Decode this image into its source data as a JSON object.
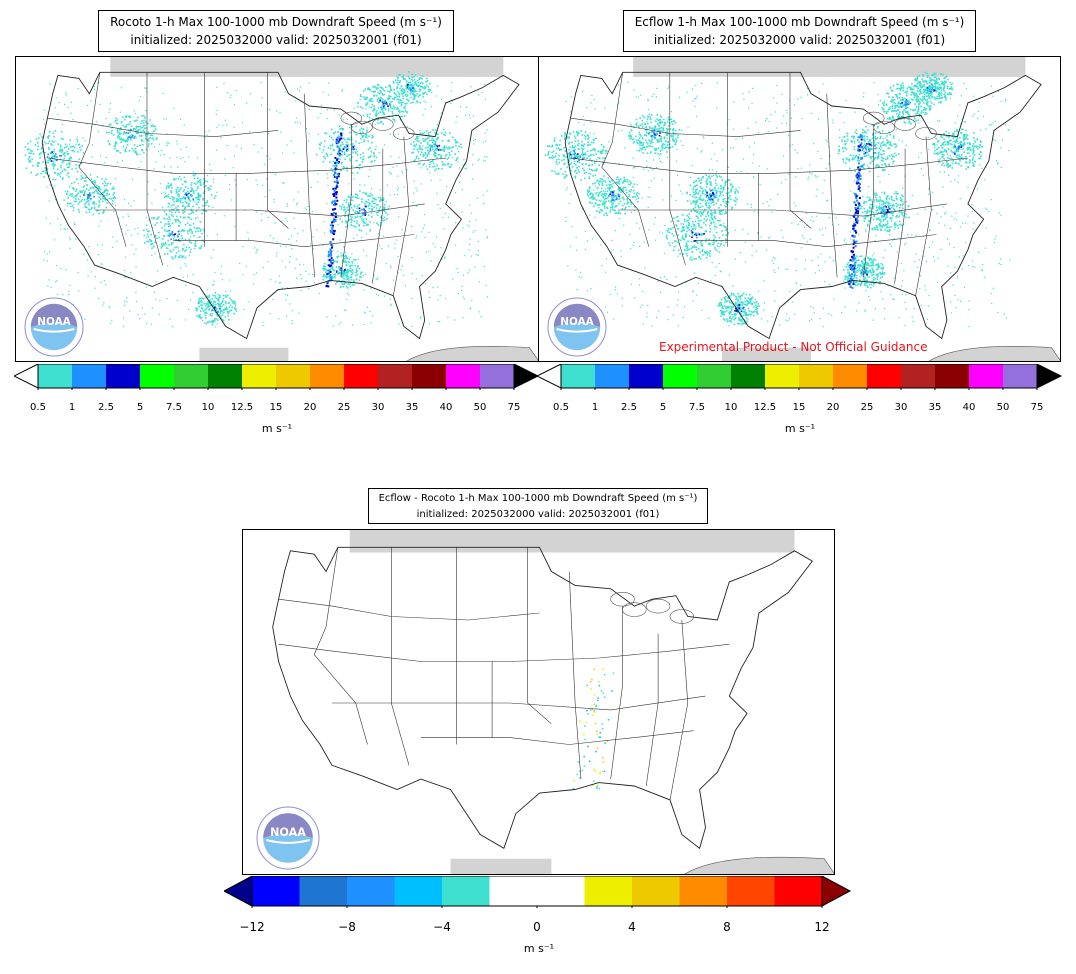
{
  "panels": [
    {
      "title_line1": "Rocoto 1-h Max 100-1000 mb Downdraft Speed (m s⁻¹)",
      "title_line2": "initialized: 2025032000 valid: 2025032001 (f01)"
    },
    {
      "title_line1": "Ecflow 1-h Max 100-1000 mb Downdraft Speed (m s⁻¹)",
      "title_line2": "initialized: 2025032000 valid: 2025032001 (f01)",
      "disclaimer": "Experimental Product - Not Official Guidance"
    },
    {
      "title_line1": "Ecflow - Rocoto 1-h Max 100-1000 mb Downdraft Speed (m s⁻¹)",
      "title_line2": "initialized: 2025032000 valid: 2025032001 (f01)"
    }
  ],
  "colorbar_top": {
    "ticks": [
      "0.5",
      "1",
      "2.5",
      "5",
      "7.5",
      "10",
      "12.5",
      "15",
      "20",
      "25",
      "30",
      "35",
      "40",
      "50",
      "75"
    ],
    "colors": [
      "#40e0d0",
      "#1e90ff",
      "#0000cd",
      "#00ff00",
      "#32cd32",
      "#008000",
      "#eeee00",
      "#eec900",
      "#ff8c00",
      "#ff0000",
      "#b22222",
      "#8b0000",
      "#ff00ff",
      "#9370db"
    ],
    "extend_low": "#ffffff",
    "extend_high": "#000000",
    "unit_label": "m s⁻¹"
  },
  "colorbar_diff": {
    "ticks": [
      "−12",
      "−8",
      "−4",
      "0",
      "4",
      "8",
      "12"
    ],
    "colors": [
      "#0000ff",
      "#1e76d2",
      "#1e90ff",
      "#00bfff",
      "#40e0d0",
      "#ffffff",
      "#ffffff",
      "#eeee00",
      "#eec900",
      "#ff8c00",
      "#ff4500",
      "#ff0000"
    ],
    "extend_low": "#00008b",
    "extend_high": "#8b0000",
    "unit_label": "m s⁻¹"
  },
  "logo": {
    "text": "NOAA",
    "ring_text": "NATIONAL OCEANIC AND ATMOSPHERIC ADMINISTRATION · U.S. DEPARTMENT OF COMMERCE"
  },
  "colors": {
    "land_border": "#222222",
    "gray_fill": "#d3d3d3",
    "disclaimer": "#e8141e"
  }
}
